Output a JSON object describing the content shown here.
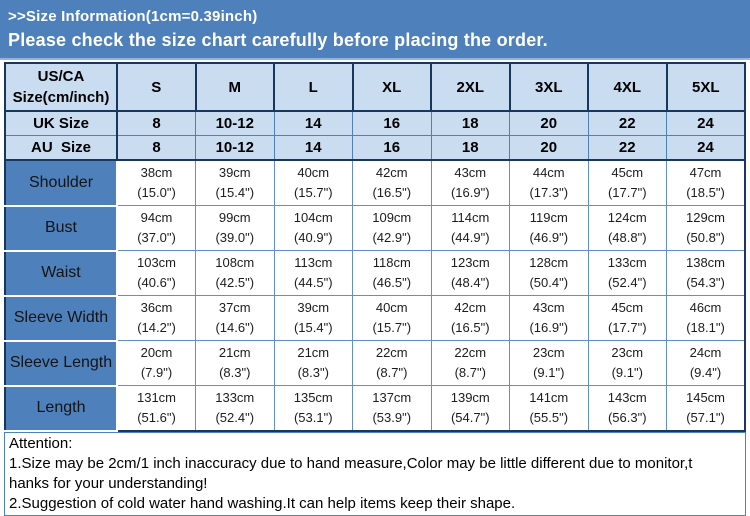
{
  "banner": {
    "title": ">>Size Information(1cm=0.39inch)",
    "subtitle": "Please check the size chart carefully before placing the order."
  },
  "colors": {
    "banner_blue": "#4e80bc",
    "light_blue": "#c9dcf0",
    "navy_border": "#17375e",
    "grid_blue": "#5f90c8"
  },
  "size_chart": {
    "corner_header_line1": "US/CA",
    "corner_header_line2": "Size(cm/inch)",
    "size_columns": [
      "S",
      "M",
      "L",
      "XL",
      "2XL",
      "3XL",
      "4XL",
      "5XL"
    ],
    "uk_row": {
      "label": "UK Size",
      "values": [
        "8",
        "10-12",
        "14",
        "16",
        "18",
        "20",
        "22",
        "24"
      ]
    },
    "au_row": {
      "label": "AU  Size",
      "values": [
        "8",
        "10-12",
        "14",
        "16",
        "18",
        "20",
        "22",
        "24"
      ]
    },
    "measurement_rows": [
      {
        "label": "Shoulder",
        "cm": [
          "38cm",
          "39cm",
          "40cm",
          "42cm",
          "43cm",
          "44cm",
          "45cm",
          "47cm"
        ],
        "inch": [
          "(15.0\")",
          "(15.4\")",
          "(15.7\")",
          "(16.5\")",
          "(16.9\")",
          "(17.3\")",
          "(17.7\")",
          "(18.5\")"
        ]
      },
      {
        "label": "Bust",
        "cm": [
          "94cm",
          "99cm",
          "104cm",
          "109cm",
          "114cm",
          "119cm",
          "124cm",
          "129cm"
        ],
        "inch": [
          "(37.0\")",
          "(39.0\")",
          "(40.9\")",
          "(42.9\")",
          "(44.9\")",
          "(46.9\")",
          "(48.8\")",
          "(50.8\")"
        ]
      },
      {
        "label": "Waist",
        "cm": [
          "103cm",
          "108cm",
          "113cm",
          "118cm",
          "123cm",
          "128cm",
          "133cm",
          "138cm"
        ],
        "inch": [
          "(40.6\")",
          "(42.5\")",
          "(44.5\")",
          "(46.5\")",
          "(48.4\")",
          "(50.4\")",
          "(52.4\")",
          "(54.3\")"
        ]
      },
      {
        "label": "Sleeve Width",
        "cm": [
          "36cm",
          "37cm",
          "39cm",
          "40cm",
          "42cm",
          "43cm",
          "45cm",
          "46cm"
        ],
        "inch": [
          "(14.2\")",
          "(14.6\")",
          "(15.4\")",
          "(15.7\")",
          "(16.5\")",
          "(16.9\")",
          "(17.7\")",
          "(18.1\")"
        ]
      },
      {
        "label": "Sleeve Length",
        "cm": [
          "20cm",
          "21cm",
          "21cm",
          "22cm",
          "22cm",
          "23cm",
          "23cm",
          "24cm"
        ],
        "inch": [
          "(7.9\")",
          "(8.3\")",
          "(8.3\")",
          "(8.7\")",
          "(8.7\")",
          "(9.1\")",
          "(9.1\")",
          "(9.4\")"
        ]
      },
      {
        "label": "Length",
        "cm": [
          "131cm",
          "133cm",
          "135cm",
          "137cm",
          "139cm",
          "141cm",
          "143cm",
          "145cm"
        ],
        "inch": [
          "(51.6\")",
          "(52.4\")",
          "(53.1\")",
          "(53.9\")",
          "(54.7\")",
          "(55.5\")",
          "(56.3\")",
          "(57.1\")"
        ]
      }
    ]
  },
  "attention": {
    "heading": "Attention:",
    "lines": [
      "1.Size may be 2cm/1 inch inaccuracy due to hand measure,Color may be little different due to monitor,t",
      "hanks for your understanding!",
      "2.Suggestion of cold water hand washing.It can help items keep their shape."
    ]
  }
}
